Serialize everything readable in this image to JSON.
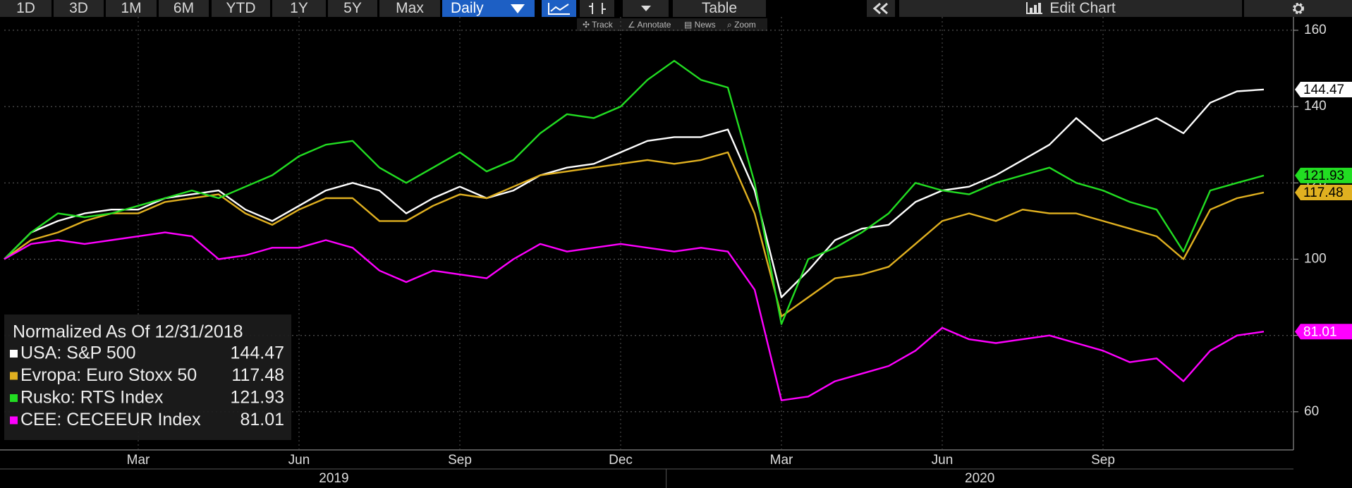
{
  "toolbar": {
    "ranges": [
      "1D",
      "3D",
      "1M",
      "6M",
      "YTD",
      "1Y",
      "5Y",
      "Max"
    ],
    "interval": "Daily",
    "table": "Table",
    "edit": "Edit Chart",
    "tools": [
      "Track",
      "Annotate",
      "News",
      "Zoom"
    ]
  },
  "chart_data": {
    "type": "line",
    "legend_title": "Normalized As Of 12/31/2018",
    "xlim": [
      0,
      48
    ],
    "xticks": [
      {
        "value": 5,
        "label": "Mar"
      },
      {
        "value": 11,
        "label": "Jun"
      },
      {
        "value": 17,
        "label": "Sep"
      },
      {
        "value": 23,
        "label": "Dec"
      },
      {
        "value": 29,
        "label": "Mar"
      },
      {
        "value": 35,
        "label": "Jun"
      },
      {
        "value": 41,
        "label": "Sep"
      }
    ],
    "x_group_labels": [
      {
        "value": 12.3,
        "label": "2019"
      },
      {
        "value": 36.4,
        "label": "2020"
      }
    ],
    "x_group_breaks": [
      24.7
    ],
    "ylim": [
      50,
      163.5
    ],
    "yticks": [
      60,
      80,
      100,
      120,
      140,
      160
    ],
    "grid": true,
    "legend": "bottom-left",
    "series": [
      {
        "name": "USA: S&P 500",
        "color": "#ffffff",
        "values": [
          100,
          107,
          110,
          112,
          113,
          113,
          116,
          117,
          118,
          113,
          110,
          114,
          118,
          120,
          118,
          112,
          116,
          119,
          116,
          118,
          122,
          124,
          125,
          128,
          131,
          132,
          132,
          134,
          118,
          90,
          97,
          105,
          108,
          109,
          115,
          118,
          119,
          122,
          126,
          130,
          137,
          131,
          134,
          137,
          133,
          141,
          144,
          144.47
        ]
      },
      {
        "name": "Evropa: Euro Stoxx 50",
        "color": "#e0b020",
        "values": [
          100,
          105,
          107,
          110,
          112,
          112,
          115,
          116,
          117,
          112,
          109,
          113,
          116,
          116,
          110,
          110,
          114,
          117,
          116,
          119,
          122,
          123,
          124,
          125,
          126,
          125,
          126,
          128,
          112,
          85,
          90,
          95,
          96,
          98,
          104,
          110,
          112,
          110,
          113,
          112,
          112,
          110,
          108,
          106,
          100,
          113,
          116,
          117.48
        ]
      },
      {
        "name": "Rusko: RTS Index",
        "color": "#22dd22",
        "values": [
          100,
          107,
          112,
          111,
          112,
          114,
          116,
          118,
          116,
          119,
          122,
          127,
          130,
          131,
          124,
          120,
          124,
          128,
          123,
          126,
          133,
          138,
          137,
          140,
          147,
          152,
          147,
          145,
          120,
          83,
          100,
          103,
          107,
          112,
          120,
          118,
          117,
          120,
          122,
          124,
          120,
          118,
          115,
          113,
          102,
          118,
          120,
          121.93
        ]
      },
      {
        "name": "CEE: CECEEUR Index",
        "color": "#ff00ff",
        "values": [
          100,
          104,
          105,
          104,
          105,
          106,
          107,
          106,
          100,
          101,
          103,
          103,
          105,
          103,
          97,
          94,
          97,
          96,
          95,
          100,
          104,
          102,
          103,
          104,
          103,
          102,
          103,
          102,
          92,
          63,
          64,
          68,
          70,
          72,
          76,
          82,
          79,
          78,
          79,
          80,
          78,
          76,
          73,
          74,
          68,
          76,
          80,
          81.01
        ]
      }
    ]
  }
}
